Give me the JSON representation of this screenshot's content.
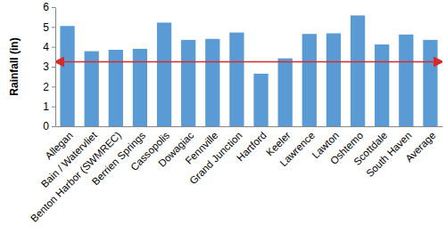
{
  "chart_data": {
    "type": "bar",
    "y_label": "Rainfall (in)",
    "categories": [
      "Allegan",
      "Bain / Watervliet",
      "Benton Harbor (SWMREC)",
      "Berrien Springs",
      "Cassopolis",
      "Dowagiac",
      "Fennville",
      "Grand Junction",
      "Hartford",
      "Keeler",
      "Lawrence",
      "Lawton",
      "Oshtemo",
      "Scottdale",
      "South Haven",
      "Average"
    ],
    "values": [
      5.05,
      3.78,
      3.85,
      3.9,
      5.22,
      4.35,
      4.4,
      4.72,
      2.65,
      3.42,
      4.65,
      4.68,
      5.58,
      4.12,
      4.62,
      4.35
    ],
    "color": "#5b9bd5",
    "reference_line": 3.25,
    "ylim": [
      0,
      6
    ],
    "yticks": [
      0,
      1,
      2,
      3,
      4,
      5,
      6
    ],
    "grid": false
  }
}
